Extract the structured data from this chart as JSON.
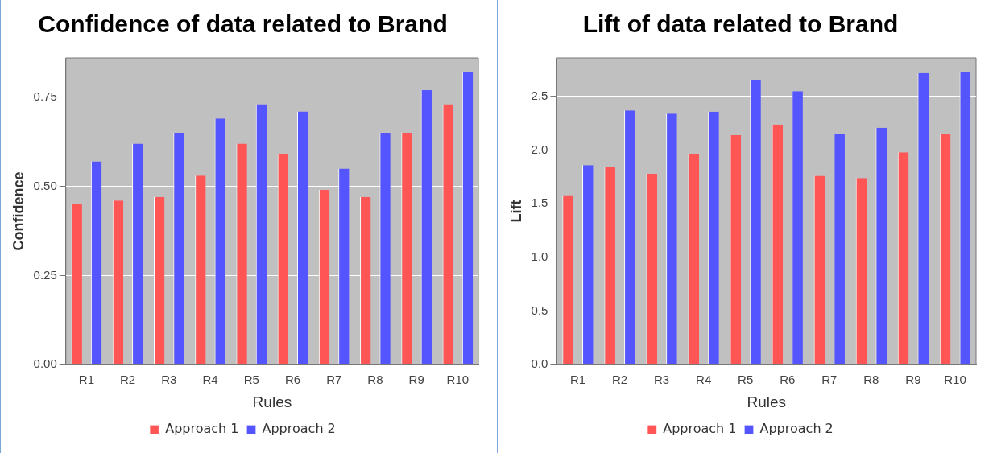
{
  "chart_data": [
    {
      "type": "bar",
      "title": "Confidence of data related to Brand",
      "xlabel": "Rules",
      "ylabel": "Confidence",
      "categories": [
        "R1",
        "R2",
        "R3",
        "R4",
        "R5",
        "R6",
        "R7",
        "R8",
        "R9",
        "R10"
      ],
      "series": [
        {
          "name": "Approach 1",
          "color": "#ff5555",
          "values": [
            0.45,
            0.46,
            0.47,
            0.53,
            0.62,
            0.59,
            0.49,
            0.47,
            0.65,
            0.73
          ]
        },
        {
          "name": "Approach 2",
          "color": "#5555ff",
          "values": [
            0.57,
            0.62,
            0.65,
            0.69,
            0.73,
            0.71,
            0.55,
            0.65,
            0.77,
            0.82
          ]
        }
      ],
      "ylim": [
        0,
        0.86
      ],
      "yticks": [
        {
          "value": 0,
          "label": "0.00"
        },
        0.25,
        {
          "value": 0.5,
          "label": "0.50"
        },
        0.75
      ],
      "grid": "y",
      "legend": "bottom"
    },
    {
      "type": "bar",
      "title": "Lift of data related to Brand",
      "xlabel": "Rules",
      "ylabel": "Lift",
      "categories": [
        "R1",
        "R2",
        "R3",
        "R4",
        "R5",
        "R6",
        "R7",
        "R8",
        "R9",
        "R10"
      ],
      "series": [
        {
          "name": "Approach 1",
          "color": "#ff5555",
          "values": [
            1.58,
            1.84,
            1.78,
            1.96,
            2.14,
            2.24,
            1.76,
            1.74,
            1.98,
            2.15
          ]
        },
        {
          "name": "Approach 2",
          "color": "#5555ff",
          "values": [
            1.86,
            2.37,
            2.34,
            2.36,
            2.65,
            2.55,
            2.15,
            2.21,
            2.72,
            2.73
          ]
        }
      ],
      "ylim": [
        0,
        2.86
      ],
      "yticks": [
        {
          "value": 0,
          "label": "0.0"
        },
        0.5,
        {
          "value": 1,
          "label": "1.0"
        },
        1.5,
        {
          "value": 2,
          "label": "2.0"
        },
        2.5
      ],
      "grid": "y",
      "legend": "bottom"
    }
  ]
}
